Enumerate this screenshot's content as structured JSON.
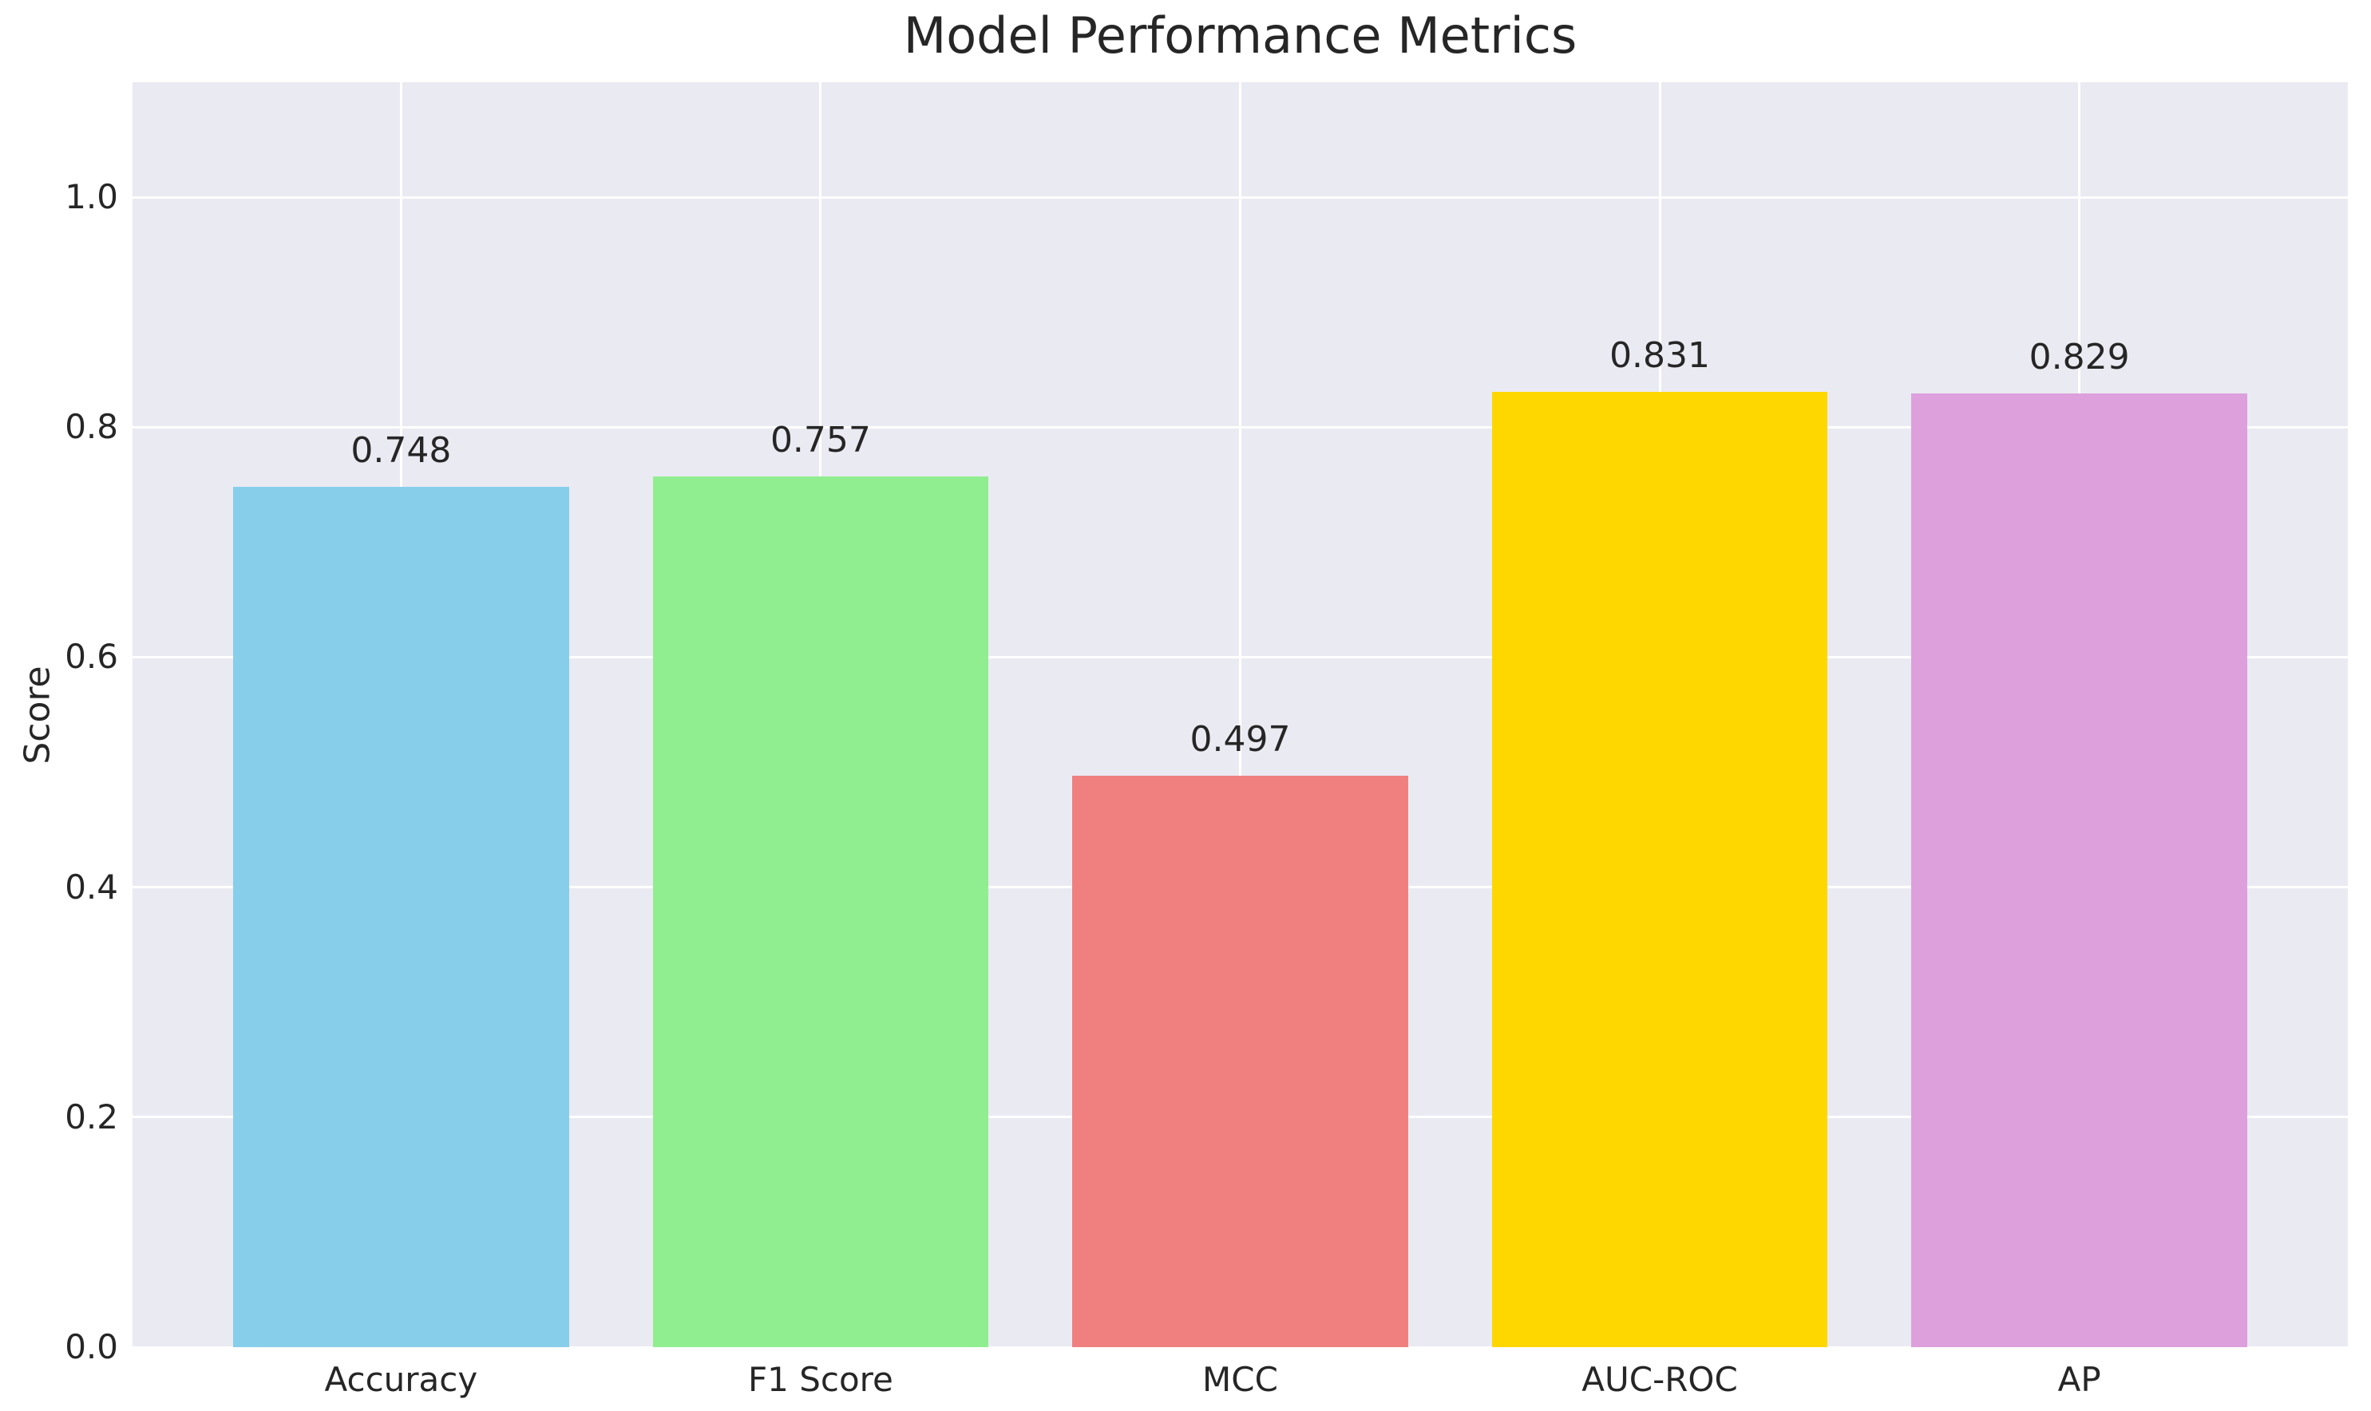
{
  "chart_data": {
    "type": "bar",
    "title": "Model Performance Metrics",
    "xlabel": "",
    "ylabel": "Score",
    "categories": [
      "Accuracy",
      "F1 Score",
      "MCC",
      "AUC-ROC",
      "AP"
    ],
    "values": [
      0.748,
      0.757,
      0.497,
      0.831,
      0.829
    ],
    "value_labels": [
      "0.748",
      "0.757",
      "0.497",
      "0.831",
      "0.829"
    ],
    "bar_colors": [
      "#87CEEB",
      "#90EE90",
      "#F08080",
      "#FFD700",
      "#DDA0DD"
    ],
    "ylim": [
      0,
      1.1
    ],
    "yticks": [
      0.0,
      0.2,
      0.4,
      0.6,
      0.8,
      1.0
    ],
    "ytick_labels": [
      "0.0",
      "0.2",
      "0.4",
      "0.6",
      "0.8",
      "1.0"
    ],
    "grid": true,
    "legend_position": "none",
    "colors": {
      "plot_background": "#EAEAF2",
      "figure_background": "#FFFFFF",
      "grid_color": "#FFFFFF",
      "text_color": "#262626"
    }
  }
}
